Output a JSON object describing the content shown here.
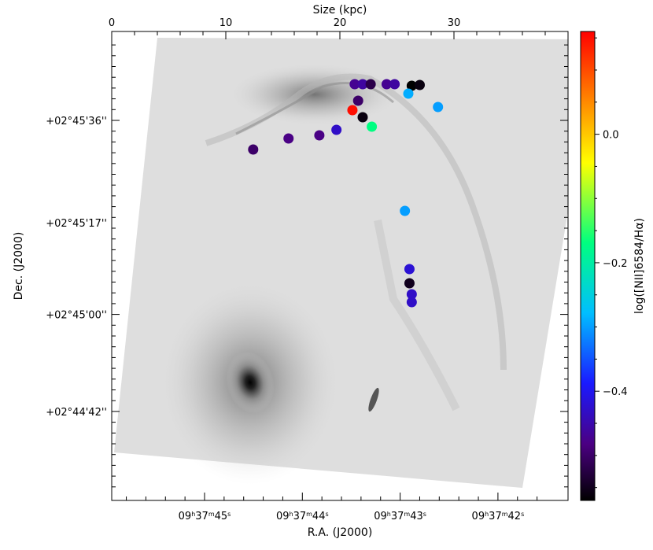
{
  "chart_data": {
    "type": "scatter",
    "title": "",
    "top_axis": {
      "label": "Size (kpc)",
      "range": [
        0,
        40
      ],
      "ticks": [
        {
          "value": 0,
          "label": "0"
        },
        {
          "value": 10,
          "label": "10"
        },
        {
          "value": 20,
          "label": "20"
        },
        {
          "value": 30,
          "label": "30"
        }
      ]
    },
    "bottom_axis": {
      "label": "R.A. (J2000)",
      "ticks": [
        {
          "value": 45.0,
          "label": "09h37m45s"
        },
        {
          "value": 44.0,
          "label": "09h37m44s"
        },
        {
          "value": 43.0,
          "label": "09h37m43s"
        },
        {
          "value": 42.0,
          "label": "09h37m42s"
        }
      ]
    },
    "left_axis": {
      "label": "Dec. (J2000)",
      "ticks": [
        {
          "value": 36,
          "label": "+02°45'36''"
        },
        {
          "value": 17,
          "label": "+02°45'17''"
        },
        {
          "value": 0,
          "label": "+02°45'00''"
        },
        {
          "value": -18,
          "label": "+02°44'42''"
        }
      ]
    },
    "colorbar": {
      "label": "log([NII]6584/Hα)",
      "range": [
        -0.57,
        0.16
      ],
      "ticks": [
        {
          "value": 0.0,
          "label": "0.0"
        },
        {
          "value": -0.2,
          "label": "−0.2"
        },
        {
          "value": -0.4,
          "label": "−0.4"
        }
      ]
    },
    "grid": false,
    "points": [
      {
        "x": 21.3,
        "y": 67,
        "v": -0.47
      },
      {
        "x": 22.0,
        "y": 67,
        "v": -0.46
      },
      {
        "x": 22.7,
        "y": 67,
        "v": -0.52
      },
      {
        "x": 24.1,
        "y": 67,
        "v": -0.47
      },
      {
        "x": 24.8,
        "y": 67,
        "v": -0.46
      },
      {
        "x": 26.3,
        "y": 69,
        "v": -0.57
      },
      {
        "x": 27.0,
        "y": 68,
        "v": -0.56
      },
      {
        "x": 26.0,
        "y": 79,
        "v": -0.29
      },
      {
        "x": 28.6,
        "y": 96,
        "v": -0.3
      },
      {
        "x": 21.1,
        "y": 100,
        "v": 0.15
      },
      {
        "x": 21.6,
        "y": 88,
        "v": -0.5
      },
      {
        "x": 22.0,
        "y": 109,
        "v": -0.56
      },
      {
        "x": 22.8,
        "y": 121,
        "v": -0.17
      },
      {
        "x": 19.7,
        "y": 125,
        "v": -0.43
      },
      {
        "x": 18.2,
        "y": 132,
        "v": -0.48
      },
      {
        "x": 15.5,
        "y": 136,
        "v": -0.48
      },
      {
        "x": 12.4,
        "y": 150,
        "v": -0.5
      },
      {
        "x": 25.7,
        "y": 228,
        "v": -0.3
      },
      {
        "x": 26.1,
        "y": 302,
        "v": -0.42
      },
      {
        "x": 26.1,
        "y": 320,
        "v": -0.55
      },
      {
        "x": 26.3,
        "y": 334,
        "v": -0.43
      },
      {
        "x": 26.3,
        "y": 344,
        "v": -0.43
      }
    ]
  }
}
